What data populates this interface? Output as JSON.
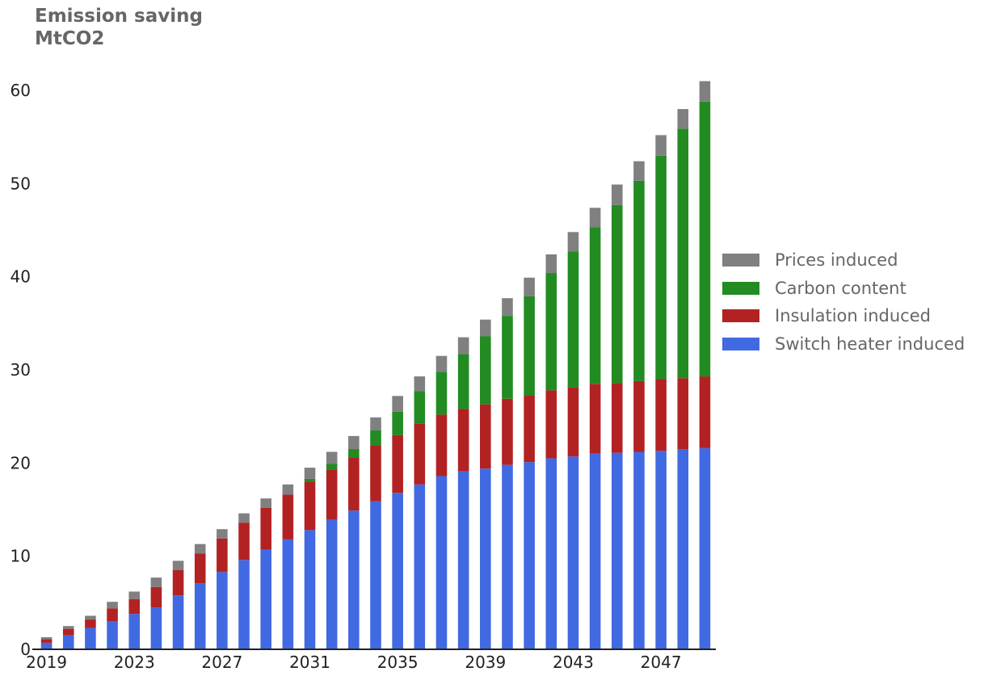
{
  "chart_data": {
    "type": "bar",
    "stacked": true,
    "title": "Emission saving",
    "subtitle": "MtCO2",
    "x": [
      2019,
      2020,
      2021,
      2022,
      2023,
      2024,
      2025,
      2026,
      2027,
      2028,
      2029,
      2030,
      2031,
      2032,
      2033,
      2034,
      2035,
      2036,
      2037,
      2038,
      2039,
      2040,
      2041,
      2042,
      2043,
      2044,
      2045,
      2046,
      2047,
      2048,
      2049
    ],
    "x_tick_labels": [
      "2019",
      "2023",
      "2027",
      "2031",
      "2035",
      "2039",
      "2043",
      "2047"
    ],
    "y_ticks": [
      0,
      10,
      20,
      30,
      40,
      50,
      60
    ],
    "ylim": [
      0,
      62
    ],
    "legend_position": "right",
    "grid": false,
    "series": [
      {
        "name": "Switch heater induced",
        "color": "#4169e1",
        "values": [
          0.7,
          1.5,
          2.3,
          3.0,
          3.8,
          4.5,
          5.8,
          7.1,
          8.3,
          9.6,
          10.7,
          11.8,
          12.8,
          13.9,
          14.9,
          15.9,
          16.8,
          17.7,
          18.6,
          19.1,
          19.4,
          19.8,
          20.1,
          20.5,
          20.7,
          21.0,
          21.1,
          21.2,
          21.3,
          21.5,
          21.6
        ]
      },
      {
        "name": "Insulation induced",
        "color": "#b22222",
        "values": [
          0.4,
          0.7,
          0.9,
          1.4,
          1.6,
          2.2,
          2.7,
          3.2,
          3.6,
          4.0,
          4.5,
          4.8,
          5.2,
          5.4,
          5.7,
          6.0,
          6.2,
          6.5,
          6.6,
          6.7,
          6.9,
          7.1,
          7.2,
          7.3,
          7.4,
          7.5,
          7.5,
          7.6,
          7.7,
          7.6,
          7.7
        ]
      },
      {
        "name": "Carbon content",
        "color": "#228b22",
        "values": [
          0,
          0,
          0,
          0,
          0,
          0,
          0,
          0,
          0,
          0,
          0,
          0,
          0.3,
          0.6,
          0.9,
          1.6,
          2.5,
          3.5,
          4.6,
          5.9,
          7.3,
          8.9,
          10.6,
          12.6,
          14.6,
          16.8,
          19.1,
          21.5,
          24.0,
          26.8,
          29.5
        ]
      },
      {
        "name": "Prices induced",
        "color": "#808080",
        "values": [
          0.2,
          0.3,
          0.4,
          0.7,
          0.8,
          1.0,
          1.0,
          1.0,
          1.0,
          1.0,
          1.0,
          1.1,
          1.2,
          1.3,
          1.4,
          1.4,
          1.7,
          1.6,
          1.7,
          1.8,
          1.8,
          1.9,
          2.0,
          2.0,
          2.1,
          2.1,
          2.2,
          2.1,
          2.2,
          2.1,
          2.2
        ]
      }
    ]
  }
}
